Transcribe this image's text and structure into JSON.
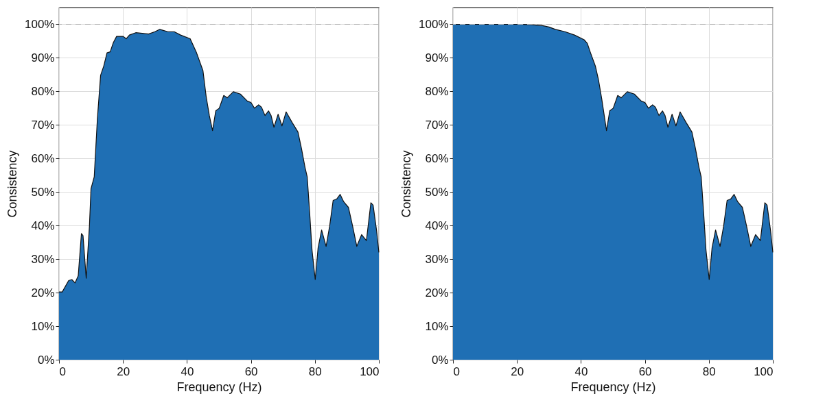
{
  "chart_data": [
    {
      "type": "area",
      "xlabel": "Frequency (Hz)",
      "ylabel": "Consistency",
      "color": "#1f6fb4",
      "x": [
        0,
        1,
        3,
        4,
        5,
        6,
        7,
        7.5,
        8.5,
        9.5,
        10,
        11,
        12,
        13,
        14,
        15,
        16,
        17,
        18,
        20,
        21,
        22,
        24,
        28,
        30,
        31.5,
        34,
        36,
        38,
        41,
        43,
        45,
        46,
        47,
        48,
        49,
        50.1,
        51.5,
        52.6,
        54.5,
        56.7,
        58.9,
        60,
        61.1,
        62.4,
        63.3,
        64.4,
        65.5,
        66.3,
        67.2,
        68.5,
        69.7,
        71,
        72.9,
        74.7,
        75.8,
        76.9,
        77.6,
        78.4,
        79.1,
        80.1,
        81,
        82.1,
        83.5,
        84.6,
        85.7,
        86.8,
        87.9,
        89,
        90.5,
        91.8,
        93.1,
        94.6,
        96.1,
        97.5,
        98.2,
        99.3,
        100
      ],
      "values": [
        20.2,
        20.2,
        23.6,
        23.9,
        22.9,
        25,
        37.6,
        37,
        24.3,
        39.8,
        51,
        54.5,
        72,
        84.8,
        87.6,
        91.5,
        91.8,
        94.6,
        96.4,
        96.4,
        95.7,
        96.8,
        97.5,
        97.1,
        97.8,
        98.5,
        97.8,
        97.8,
        96.8,
        95.7,
        91.5,
        86.2,
        78.5,
        72.8,
        68.3,
        74.2,
        75,
        78.8,
        78.1,
        79.9,
        79.2,
        77.1,
        76.7,
        75,
        76,
        75.3,
        72.8,
        74.2,
        72.8,
        69.3,
        73.2,
        69.7,
        73.9,
        70.7,
        67.9,
        63,
        57.4,
        54.5,
        43.3,
        32.7,
        23.9,
        33.4,
        38.7,
        33.8,
        39.8,
        47.5,
        47.9,
        49.3,
        47.1,
        45.4,
        39.8,
        33.8,
        37.3,
        35.5,
        46.8,
        46.1,
        38.4,
        32
      ],
      "xlim": [
        0,
        100
      ],
      "xticks": [
        0,
        20,
        40,
        60,
        80,
        100
      ],
      "ylim": [
        0,
        105
      ],
      "yticks": [
        {
          "value": 0,
          "label": "0%"
        },
        {
          "value": 10,
          "label": "10%"
        },
        {
          "value": 20,
          "label": "20%"
        },
        {
          "value": 30,
          "label": "30%"
        },
        {
          "value": 40,
          "label": "40%"
        },
        {
          "value": 50,
          "label": "50%"
        },
        {
          "value": 60,
          "label": "60%"
        },
        {
          "value": 70,
          "label": "70%"
        },
        {
          "value": 80,
          "label": "80%"
        },
        {
          "value": 90,
          "label": "90%"
        },
        {
          "value": 100,
          "label": "100%"
        }
      ],
      "grid": true,
      "ref_lines": [
        {
          "axis": "y",
          "value": 100,
          "color": "#b4b4b4",
          "line_style": "dashed"
        }
      ]
    },
    {
      "type": "area",
      "xlabel": "Frequency (Hz)",
      "ylabel": "Consistency",
      "color": "#1f6fb4",
      "x": [
        0,
        10,
        20,
        24,
        28,
        30,
        32,
        35,
        38,
        41,
        42,
        43,
        44.5,
        45.5,
        46.5,
        48,
        49,
        50.1,
        51.5,
        52.6,
        54.5,
        56.7,
        58.9,
        60,
        61.1,
        62.4,
        63.3,
        64.4,
        65.5,
        66.3,
        67.2,
        68.5,
        69.7,
        71,
        72.9,
        74.7,
        75.8,
        76.9,
        77.6,
        78.4,
        79.1,
        80.1,
        81,
        82.1,
        83.5,
        84.6,
        85.7,
        86.8,
        87.9,
        89,
        90.5,
        91.8,
        93.1,
        94.6,
        96.1,
        97.5,
        98.2,
        99.3,
        100
      ],
      "values": [
        100,
        100,
        100,
        99.9,
        99.6,
        99.2,
        98.5,
        97.8,
        96.8,
        95.4,
        94.3,
        91.5,
        87.6,
        83.4,
        77.8,
        68.3,
        74.2,
        75,
        78.8,
        78.1,
        79.9,
        79.2,
        77.1,
        76.7,
        75,
        76,
        75.3,
        72.8,
        74.2,
        72.8,
        69.3,
        73.2,
        69.7,
        73.9,
        70.7,
        67.9,
        63,
        57.4,
        54.5,
        43.3,
        32.7,
        23.9,
        33.4,
        38.7,
        33.8,
        39.8,
        47.5,
        47.9,
        49.3,
        47.1,
        45.4,
        39.8,
        33.8,
        37.3,
        35.5,
        46.8,
        46.1,
        38.4,
        32
      ],
      "xlim": [
        0,
        100
      ],
      "xticks": [
        0,
        20,
        40,
        60,
        80,
        100
      ],
      "ylim": [
        0,
        105
      ],
      "yticks": [
        {
          "value": 0,
          "label": "0%"
        },
        {
          "value": 10,
          "label": "10%"
        },
        {
          "value": 20,
          "label": "20%"
        },
        {
          "value": 30,
          "label": "30%"
        },
        {
          "value": 40,
          "label": "40%"
        },
        {
          "value": 50,
          "label": "50%"
        },
        {
          "value": 60,
          "label": "60%"
        },
        {
          "value": 70,
          "label": "70%"
        },
        {
          "value": 80,
          "label": "80%"
        },
        {
          "value": 90,
          "label": "90%"
        },
        {
          "value": 100,
          "label": "100%"
        }
      ],
      "grid": true,
      "ref_lines": [
        {
          "axis": "y",
          "value": 100,
          "color": "#b4b4b4",
          "line_style": "dashed"
        }
      ]
    }
  ]
}
